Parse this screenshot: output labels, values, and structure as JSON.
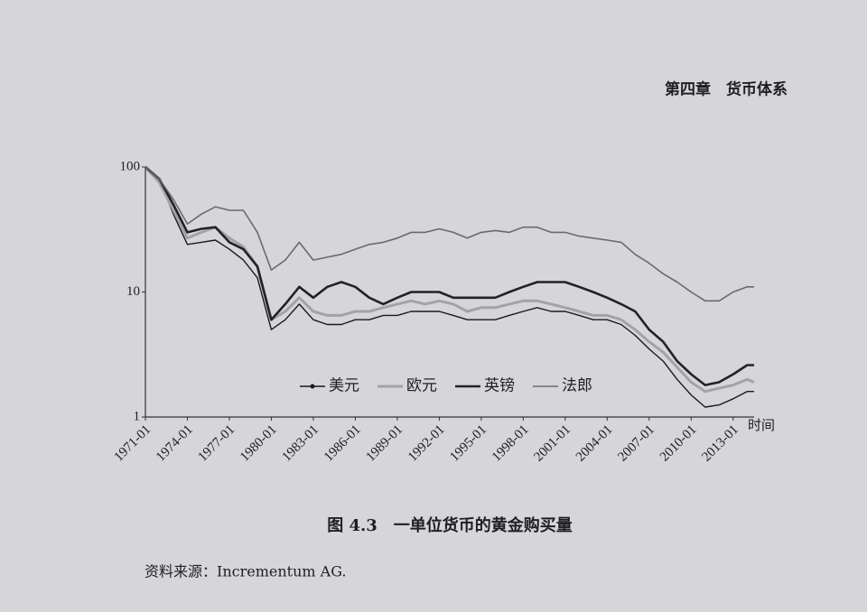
{
  "page_header": "第四章　货币体系",
  "chart_data": {
    "type": "line",
    "log_y": true,
    "grid": false,
    "x_label": "时间",
    "x": [
      "1971-01",
      "1972-01",
      "1973-01",
      "1974-01",
      "1975-01",
      "1976-01",
      "1977-01",
      "1978-01",
      "1979-01",
      "1980-01",
      "1981-01",
      "1982-01",
      "1983-01",
      "1984-01",
      "1985-01",
      "1986-01",
      "1987-01",
      "1988-01",
      "1989-01",
      "1990-01",
      "1991-01",
      "1992-01",
      "1993-01",
      "1994-01",
      "1995-01",
      "1996-01",
      "1997-01",
      "1998-01",
      "1999-01",
      "2000-01",
      "2001-01",
      "2002-01",
      "2003-01",
      "2004-01",
      "2005-01",
      "2006-01",
      "2007-01",
      "2008-01",
      "2009-01",
      "2010-01",
      "2011-01",
      "2012-01",
      "2013-01",
      "2014-01",
      "2014-07"
    ],
    "xlim": [
      "1971-01",
      "2014-07"
    ],
    "xticks": [
      "1971-01",
      "1974-01",
      "1977-01",
      "1980-01",
      "1983-01",
      "1986-01",
      "1989-01",
      "1992-01",
      "1995-01",
      "1998-01",
      "2001-01",
      "2004-01",
      "2007-01",
      "2010-01",
      "2013-01"
    ],
    "ylim": [
      1,
      100
    ],
    "yticks": [
      1,
      10,
      100
    ],
    "series": [
      {
        "name": "美元",
        "color": "#1a1a1a",
        "values": [
          100,
          80,
          42,
          24,
          25,
          26,
          22,
          18,
          13,
          5,
          6,
          8,
          6,
          5.5,
          5.5,
          6,
          6,
          6.5,
          6.5,
          7,
          7,
          7,
          6.5,
          6,
          6,
          6,
          6.5,
          7,
          7.5,
          7,
          7,
          6.5,
          6,
          6,
          5.5,
          4.5,
          3.5,
          2.8,
          2.0,
          1.5,
          1.2,
          1.25,
          1.4,
          1.6,
          1.6
        ]
      },
      {
        "name": "欧元",
        "color": "#a3a3a6",
        "values": [
          100,
          75,
          45,
          27,
          30,
          33,
          27,
          23,
          16,
          6,
          7,
          9,
          7,
          6.5,
          6.5,
          7,
          7,
          7.5,
          8,
          8.5,
          8,
          8.5,
          8,
          7,
          7.5,
          7.5,
          8,
          8.5,
          8.5,
          8,
          7.5,
          7,
          6.5,
          6.5,
          6,
          5,
          4,
          3.3,
          2.5,
          1.9,
          1.6,
          1.7,
          1.8,
          2.0,
          1.9
        ]
      },
      {
        "name": "英镑",
        "color": "#222222",
        "values": [
          100,
          80,
          50,
          30,
          32,
          33,
          25,
          22,
          16,
          6,
          8,
          11,
          9,
          11,
          12,
          11,
          9,
          8,
          9,
          10,
          10,
          10,
          9,
          9,
          9,
          9,
          10,
          11,
          12,
          12,
          12,
          11,
          10,
          9,
          8,
          7,
          5,
          4,
          2.8,
          2.2,
          1.8,
          1.9,
          2.2,
          2.6,
          2.6
        ]
      },
      {
        "name": "法郎",
        "color": "#6a6a6d",
        "values": [
          100,
          80,
          55,
          35,
          42,
          48,
          45,
          45,
          30,
          15,
          18,
          25,
          18,
          19,
          20,
          22,
          24,
          25,
          27,
          30,
          30,
          32,
          30,
          27,
          30,
          31,
          30,
          33,
          33,
          30,
          30,
          28,
          27,
          26,
          25,
          20,
          17,
          14,
          12,
          10,
          8.5,
          8.5,
          10,
          11,
          11
        ]
      }
    ]
  },
  "caption": "图 4.3　一单位货币的黄金购买量",
  "source": "资料来源：Incrementum AG."
}
